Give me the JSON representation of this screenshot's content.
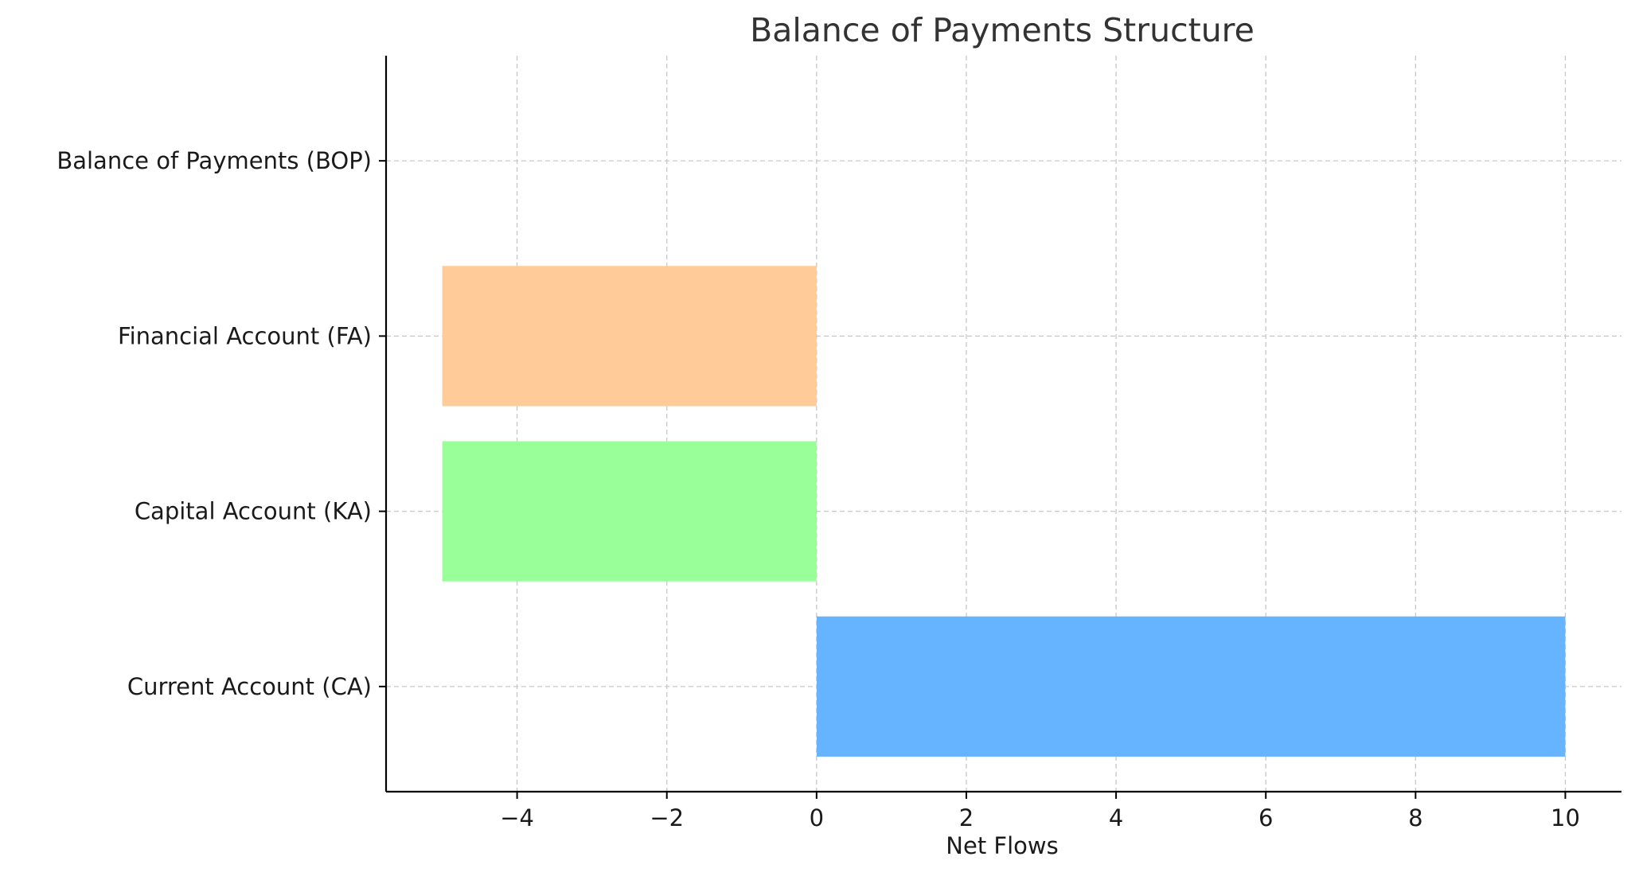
{
  "chart_data": {
    "type": "bar",
    "orientation": "horizontal",
    "title": "Balance of Payments Structure",
    "xlabel": "Net Flows",
    "ylabel": "",
    "categories": [
      "Current Account (CA)",
      "Capital Account (KA)",
      "Financial Account (FA)",
      "Balance of Payments (BOP)"
    ],
    "values": [
      10,
      -5,
      -5,
      0
    ],
    "colors": [
      "#66b3ff",
      "#99ff99",
      "#ffcc99",
      "#ff9999"
    ],
    "xlim": [
      -5.75,
      10.75
    ],
    "xticks": [
      -4,
      -2,
      0,
      2,
      4,
      6,
      8,
      10
    ],
    "xtick_labels": [
      "−4",
      "−2",
      "0",
      "2",
      "4",
      "6",
      "8",
      "10"
    ],
    "grid": true
  }
}
